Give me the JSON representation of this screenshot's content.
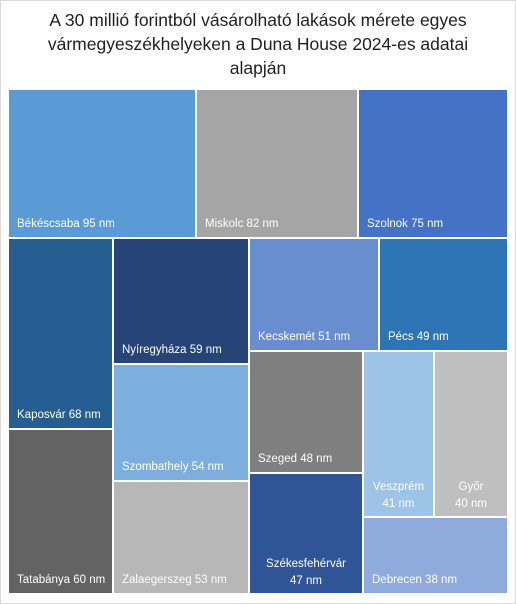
{
  "chart_data": {
    "type": "treemap",
    "title_lines": [
      "A 30 millió forintból vásárolható lakások mérete egyes",
      "vármegyeszékhelyeken  a Duna House 2024-es adatai",
      "alapján"
    ],
    "unit": "nm",
    "items": [
      {
        "name": "Békéscsaba",
        "value": 95,
        "color": "#5B9BD5"
      },
      {
        "name": "Miskolc",
        "value": 82,
        "color": "#A5A5A5"
      },
      {
        "name": "Szolnok",
        "value": 75,
        "color": "#4472C4"
      },
      {
        "name": "Kaposvár",
        "value": 68,
        "color": "#255E91"
      },
      {
        "name": "Nyíregyháza",
        "value": 59,
        "color": "#264478"
      },
      {
        "name": "Kecskemét",
        "value": 51,
        "color": "#698ED0"
      },
      {
        "name": "Pécs",
        "value": 49,
        "color": "#2E75B6"
      },
      {
        "name": "Tatabánya",
        "value": 60,
        "color": "#636363"
      },
      {
        "name": "Szombathely",
        "value": 54,
        "color": "#7CAFDD"
      },
      {
        "name": "Szeged",
        "value": 48,
        "color": "#7F7F7F"
      },
      {
        "name": "Veszprém",
        "value": 41,
        "color": "#9DC3E6"
      },
      {
        "name": "Győr",
        "value": 40,
        "color": "#BFBFBF"
      },
      {
        "name": "Zalaegerszeg",
        "value": 53,
        "color": "#B7B7B7"
      },
      {
        "name": "Székesfehérvár",
        "value": 47,
        "color": "#2F5597"
      },
      {
        "name": "Debrecen",
        "value": 38,
        "color": "#8FAADC"
      }
    ]
  }
}
